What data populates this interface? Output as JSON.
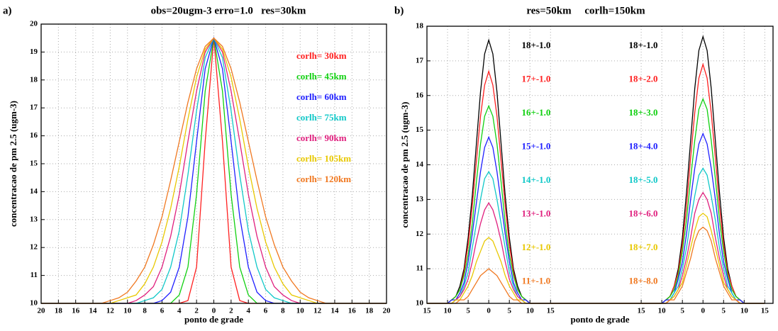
{
  "chart_data": [
    {
      "type": "line",
      "panel_label": "a)",
      "title": "obs=20ugm-3 erro=1.0   res=30km",
      "xlabel": "ponto de grade",
      "ylabel": "concentracao de pm 2.5 (ugm-3)",
      "x": [
        -20,
        -19,
        -18,
        -17,
        -16,
        -15,
        -14,
        -13,
        -12,
        -11,
        -10,
        -9,
        -8,
        -7,
        -6,
        -5,
        -4,
        -3,
        -2,
        -1,
        0,
        1,
        2,
        3,
        4,
        5,
        6,
        7,
        8,
        9,
        10,
        11,
        12,
        13,
        14,
        15,
        16,
        17,
        18,
        19,
        20
      ],
      "xlim": [
        -20,
        20
      ],
      "ylim": [
        10,
        20
      ],
      "xticks": [
        {
          "value": -20,
          "label": "20"
        },
        {
          "value": -18,
          "label": "18"
        },
        {
          "value": -16,
          "label": "16"
        },
        {
          "value": -14,
          "label": "14"
        },
        {
          "value": -12,
          "label": "12"
        },
        {
          "value": -10,
          "label": "10"
        },
        {
          "value": -8,
          "label": "8"
        },
        {
          "value": -6,
          "label": "6"
        },
        {
          "value": -4,
          "label": "4"
        },
        {
          "value": -2,
          "label": "2"
        },
        0,
        2,
        4,
        6,
        8,
        10,
        12,
        14,
        16,
        18,
        20
      ],
      "yticks": [
        10,
        11,
        12,
        13,
        14,
        15,
        16,
        17,
        18,
        19,
        20
      ],
      "grid": true,
      "legend": "upper right",
      "series": [
        {
          "name": "corlh= 30km",
          "color": "#ff2020",
          "values": [
            10,
            10,
            10,
            10,
            10,
            10,
            10,
            10,
            10,
            10,
            10,
            10,
            10,
            10,
            10,
            10,
            10,
            10.1,
            11.3,
            15.8,
            19.5,
            15.8,
            11.3,
            10.1,
            10,
            10,
            10,
            10,
            10,
            10,
            10,
            10,
            10,
            10,
            10,
            10,
            10,
            10,
            10,
            10,
            10
          ]
        },
        {
          "name": "corlh= 45km",
          "color": "#10d010",
          "values": [
            10,
            10,
            10,
            10,
            10,
            10,
            10,
            10,
            10,
            10,
            10,
            10,
            10,
            10,
            10,
            10,
            10.3,
            11.3,
            13.9,
            17.6,
            19.5,
            17.6,
            13.9,
            11.3,
            10.3,
            10,
            10,
            10,
            10,
            10,
            10,
            10,
            10,
            10,
            10,
            10,
            10,
            10,
            10,
            10,
            10
          ]
        },
        {
          "name": "corlh= 60km",
          "color": "#2020ff",
          "values": [
            10,
            10,
            10,
            10,
            10,
            10,
            10,
            10,
            10,
            10,
            10,
            10,
            10,
            10,
            10.1,
            10.4,
            11.3,
            13.1,
            15.8,
            18.4,
            19.5,
            18.4,
            15.8,
            13.1,
            11.3,
            10.4,
            10.1,
            10,
            10,
            10,
            10,
            10,
            10,
            10,
            10,
            10,
            10,
            10,
            10,
            10,
            10
          ]
        },
        {
          "name": "corlh= 75km",
          "color": "#10c8c8",
          "values": [
            10,
            10,
            10,
            10,
            10,
            10,
            10,
            10,
            10,
            10,
            10,
            10,
            10.1,
            10.2,
            10.5,
            11.3,
            12.6,
            14.6,
            16.9,
            18.8,
            19.5,
            18.8,
            16.9,
            14.6,
            12.6,
            11.3,
            10.5,
            10.2,
            10.1,
            10,
            10,
            10,
            10,
            10,
            10,
            10,
            10,
            10,
            10,
            10,
            10
          ]
        },
        {
          "name": "corlh= 90km",
          "color": "#e0207e",
          "values": [
            10,
            10,
            10,
            10,
            10,
            10,
            10,
            10,
            10,
            10,
            10,
            10.1,
            10.3,
            10.6,
            11.3,
            12.4,
            13.9,
            15.8,
            17.6,
            19.0,
            19.5,
            19.0,
            17.6,
            15.8,
            13.9,
            12.4,
            11.3,
            10.6,
            10.3,
            10.1,
            10,
            10,
            10,
            10,
            10,
            10,
            10,
            10,
            10,
            10,
            10
          ]
        },
        {
          "name": "corlh= 105km",
          "color": "#e8c800",
          "values": [
            10,
            10,
            10,
            10,
            10,
            10,
            10,
            10,
            10,
            10.1,
            10.2,
            10.3,
            10.7,
            11.3,
            12.2,
            13.4,
            14.9,
            16.6,
            18.1,
            19.1,
            19.5,
            19.1,
            18.1,
            16.6,
            14.9,
            13.4,
            12.2,
            11.3,
            10.7,
            10.3,
            10.2,
            10.1,
            10,
            10,
            10,
            10,
            10,
            10,
            10,
            10,
            10
          ]
        },
        {
          "name": "corlh= 120km",
          "color": "#f07820",
          "values": [
            10,
            10,
            10,
            10,
            10,
            10,
            10,
            10,
            10.1,
            10.2,
            10.4,
            10.8,
            11.3,
            12.1,
            13.1,
            14.4,
            15.8,
            17.2,
            18.4,
            19.2,
            19.5,
            19.2,
            18.4,
            17.2,
            15.8,
            14.4,
            13.1,
            12.1,
            11.3,
            10.8,
            10.4,
            10.2,
            10.1,
            10,
            10,
            10,
            10,
            10,
            10,
            10,
            10
          ]
        }
      ]
    },
    {
      "type": "line",
      "panel_label": "b)",
      "title": "res=50km     corlh=150km",
      "xlabel": "ponto de grade",
      "ylabel": "concentracao de pm 2.5 (ugm-3)",
      "x": [
        -15,
        -10,
        -9,
        -8,
        -7,
        -6,
        -5,
        -4,
        -3,
        -2,
        -1,
        0,
        1,
        2,
        3,
        4,
        5,
        6,
        7,
        8,
        9,
        10,
        15,
        37,
        42,
        43,
        44,
        45,
        46,
        47,
        48,
        49,
        50,
        51,
        52,
        53,
        54,
        55,
        56,
        57,
        58,
        59,
        60,
        61,
        62,
        67
      ],
      "xlim": [
        -15,
        69
      ],
      "ylim": [
        10,
        18
      ],
      "xticks": [
        {
          "value": -15,
          "label": "15"
        },
        {
          "value": -10,
          "label": "10"
        },
        {
          "value": -5,
          "label": "5"
        },
        0,
        5,
        10,
        15,
        {
          "value": 37,
          "label": "15"
        },
        {
          "value": 42,
          "label": "10"
        },
        {
          "value": 47,
          "label": "5"
        },
        {
          "value": 52,
          "label": "0"
        },
        {
          "value": 57,
          "label": "5"
        },
        {
          "value": 62,
          "label": "10"
        },
        {
          "value": 67,
          "label": "15"
        }
      ],
      "yticks": [
        10,
        11,
        12,
        13,
        14,
        15,
        16,
        17,
        18
      ],
      "grid": true,
      "series": [
        {
          "color": "#000000",
          "labels": [
            "18+-1.0",
            "18+-1.0"
          ],
          "values": [
            10,
            10,
            10.1,
            10.2,
            10.5,
            11.0,
            11.9,
            13.1,
            14.6,
            16.1,
            17.2,
            17.6,
            17.2,
            16.1,
            14.6,
            13.1,
            11.9,
            11.0,
            10.5,
            10.2,
            10.1,
            10,
            10,
            10,
            10,
            10.1,
            10.2,
            10.5,
            11.0,
            11.9,
            13.2,
            14.7,
            16.2,
            17.3,
            17.7,
            17.3,
            16.2,
            14.7,
            13.2,
            11.9,
            11.0,
            10.5,
            10.2,
            10.1,
            10,
            10
          ]
        },
        {
          "color": "#ff2020",
          "labels": [
            "17+-1.0",
            "18+-2.0"
          ],
          "values": [
            10,
            10,
            10.1,
            10.2,
            10.4,
            10.9,
            11.7,
            12.8,
            14.1,
            15.4,
            16.3,
            16.7,
            16.3,
            15.4,
            14.1,
            12.8,
            11.7,
            10.9,
            10.4,
            10.2,
            10.1,
            10,
            10,
            10,
            10,
            10.1,
            10.2,
            10.5,
            10.9,
            11.7,
            12.8,
            14.2,
            15.5,
            16.5,
            16.9,
            16.5,
            15.5,
            14.2,
            12.8,
            11.7,
            10.9,
            10.5,
            10.2,
            10.1,
            10,
            10
          ]
        },
        {
          "color": "#10d010",
          "labels": [
            "16+-1.0",
            "18+-3.0"
          ],
          "values": [
            10,
            10,
            10.1,
            10.2,
            10.4,
            10.8,
            11.4,
            12.3,
            13.5,
            14.6,
            15.4,
            15.7,
            15.4,
            14.6,
            13.5,
            12.3,
            11.4,
            10.8,
            10.4,
            10.2,
            10.1,
            10,
            10,
            10,
            10,
            10.1,
            10.2,
            10.4,
            10.8,
            11.5,
            12.4,
            13.6,
            14.7,
            15.6,
            15.9,
            15.6,
            14.7,
            13.6,
            12.4,
            11.5,
            10.8,
            10.4,
            10.2,
            10.1,
            10,
            10
          ]
        },
        {
          "color": "#2020ff",
          "labels": [
            "15+-1.0",
            "18+-4.0"
          ],
          "values": [
            10,
            10,
            10.1,
            10.1,
            10.3,
            10.6,
            11.2,
            12.0,
            12.9,
            13.8,
            14.5,
            14.8,
            14.5,
            13.8,
            12.9,
            12.0,
            11.2,
            10.6,
            10.3,
            10.1,
            10.1,
            10,
            10,
            10,
            10,
            10.1,
            10.1,
            10.3,
            10.7,
            11.2,
            12.0,
            13.0,
            13.9,
            14.6,
            14.9,
            14.6,
            13.9,
            13.0,
            12.0,
            11.2,
            10.7,
            10.3,
            10.1,
            10.1,
            10,
            10
          ]
        },
        {
          "color": "#10c8c8",
          "labels": [
            "14+-1.0",
            "18+-5.0"
          ],
          "values": [
            10,
            10,
            10,
            10.1,
            10.2,
            10.5,
            10.9,
            11.6,
            12.3,
            13.0,
            13.6,
            13.8,
            13.6,
            13.0,
            12.3,
            11.6,
            10.9,
            10.5,
            10.2,
            10.1,
            10,
            10,
            10,
            10,
            10,
            10,
            10.1,
            10.3,
            10.5,
            11.0,
            11.6,
            12.4,
            13.1,
            13.7,
            13.9,
            13.7,
            13.1,
            12.4,
            11.6,
            11.0,
            10.5,
            10.3,
            10.1,
            10,
            10,
            10
          ]
        },
        {
          "color": "#e0207e",
          "labels": [
            "13+-1.0",
            "18+-6.0"
          ],
          "values": [
            10,
            10,
            10,
            10.1,
            10.2,
            10.4,
            10.7,
            11.2,
            11.8,
            12.3,
            12.7,
            12.9,
            12.7,
            12.3,
            11.8,
            11.2,
            10.7,
            10.4,
            10.2,
            10.1,
            10,
            10,
            10,
            10,
            10,
            10,
            10.1,
            10.2,
            10.4,
            10.8,
            11.3,
            11.9,
            12.6,
            13.0,
            13.2,
            13.0,
            12.6,
            11.9,
            11.3,
            10.8,
            10.4,
            10.2,
            10.1,
            10,
            10,
            10
          ]
        },
        {
          "color": "#e8c800",
          "labels": [
            "12+-1.0",
            "18+-7.0"
          ],
          "values": [
            10,
            10,
            10,
            10.1,
            10.1,
            10.3,
            10.5,
            10.8,
            11.2,
            11.5,
            11.8,
            11.9,
            11.8,
            11.5,
            11.2,
            10.8,
            10.5,
            10.3,
            10.1,
            10.1,
            10,
            10,
            10,
            10,
            10,
            10,
            10.1,
            10.2,
            10.4,
            10.6,
            11.1,
            11.6,
            12.1,
            12.5,
            12.6,
            12.5,
            12.1,
            11.6,
            11.1,
            10.6,
            10.4,
            10.2,
            10.1,
            10,
            10,
            10
          ]
        },
        {
          "color": "#f07820",
          "labels": [
            "11+-1.0",
            "18+-8.0"
          ],
          "values": [
            10,
            10,
            10,
            10,
            10.1,
            10.1,
            10.2,
            10.4,
            10.6,
            10.8,
            10.9,
            11.0,
            10.9,
            10.8,
            10.6,
            10.4,
            10.2,
            10.1,
            10.1,
            10,
            10,
            10,
            10,
            10,
            10,
            10,
            10.1,
            10.1,
            10.3,
            10.5,
            10.9,
            11.3,
            11.8,
            12.1,
            12.2,
            12.1,
            11.8,
            11.3,
            10.9,
            10.5,
            10.3,
            10.1,
            10.1,
            10,
            10,
            10
          ]
        }
      ]
    }
  ]
}
